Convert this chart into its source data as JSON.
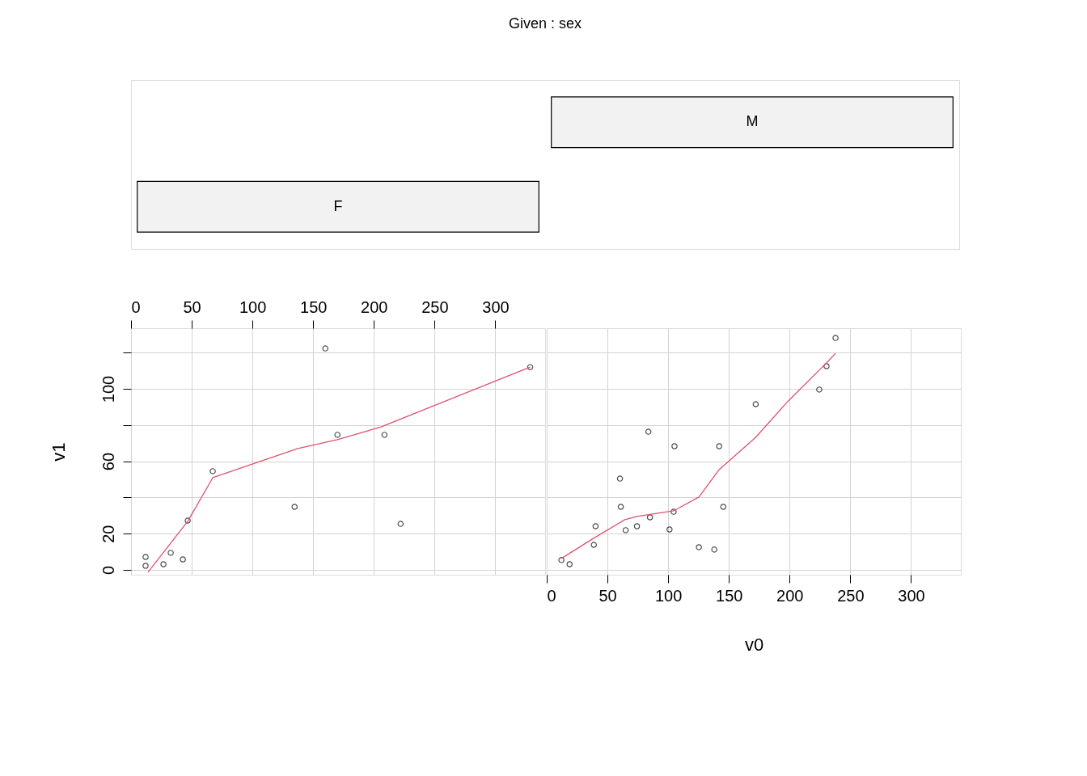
{
  "chart_data": [
    {
      "type": "other",
      "title": "Given : sex",
      "annotations": [
        "F",
        "M"
      ]
    },
    {
      "type": "scatter",
      "ylabel": "v1",
      "xlim": [
        0,
        341
      ],
      "xticks": [
        0,
        50,
        100,
        150,
        200,
        250,
        300
      ],
      "ylim": [
        -2.7,
        133.5
      ],
      "yticks": [
        0,
        20,
        {
          "value": 40,
          "label": null
        },
        60,
        {
          "value": 80,
          "label": null
        },
        100,
        {
          "value": 120,
          "label": null
        }
      ],
      "grid": true,
      "marker": "circle",
      "series": [
        {
          "color": "#000000",
          "x": [
            12,
            12,
            26.7,
            32.7,
            42.7,
            46.7,
            67.3,
            134.7,
            160,
            170,
            208.7,
            222,
            328.7
          ],
          "values": [
            7.1,
            2.2,
            3.1,
            9.4,
            5.8,
            27.2,
            54.5,
            34.8,
            122.3,
            74.6,
            74.6,
            25.4,
            112
          ]
        },
        {
          "type": "line",
          "marker": "none",
          "color": "#df536b",
          "x": [
            14,
            46.7,
            67.3,
            137.3,
            170,
            206,
            328.7
          ],
          "values": [
            -1.3,
            26.8,
            50.9,
            67,
            71.9,
            79,
            112
          ]
        }
      ]
    },
    {
      "type": "scatter",
      "xlabel": "v0",
      "xlim": [
        0,
        341
      ],
      "xticks": [
        0,
        50,
        100,
        150,
        200,
        250,
        300
      ],
      "ylim": [
        -2.7,
        133.5
      ],
      "yticks": [
        0,
        20,
        {
          "value": 40,
          "label": null
        },
        60,
        {
          "value": 80,
          "label": null
        },
        100,
        {
          "value": 120,
          "label": null
        }
      ],
      "tick_labels": "x",
      "grid": true,
      "marker": "circle",
      "series": [
        {
          "color": "#000000",
          "x": [
            12.1,
            18.8,
            38.8,
            40.2,
            60.3,
            61,
            65,
            74.3,
            83.7,
            85,
            101.1,
            104.5,
            105.2,
            125.3,
            138,
            142,
            145.4,
            172.1,
            224.4,
            230.4,
            237.8
          ],
          "values": [
            5.4,
            3.1,
            13.8,
            24.1,
            50.4,
            34.8,
            21.9,
            24.1,
            76.3,
            29,
            22.3,
            32.1,
            68.3,
            12.5,
            11.2,
            68.3,
            34.8,
            91.5,
            99.6,
            112.5,
            128.1
          ]
        },
        {
          "type": "line",
          "marker": "none",
          "color": "#df536b",
          "x": [
            12.1,
            37.5,
            64.3,
            74.3,
            104.5,
            125.3,
            142,
            172.1,
            198.3,
            230.4,
            237.8
          ],
          "values": [
            6.3,
            17,
            27.7,
            29.5,
            32.6,
            40.2,
            55.4,
            73.2,
            92.9,
            114.3,
            119.6
          ]
        }
      ]
    }
  ]
}
